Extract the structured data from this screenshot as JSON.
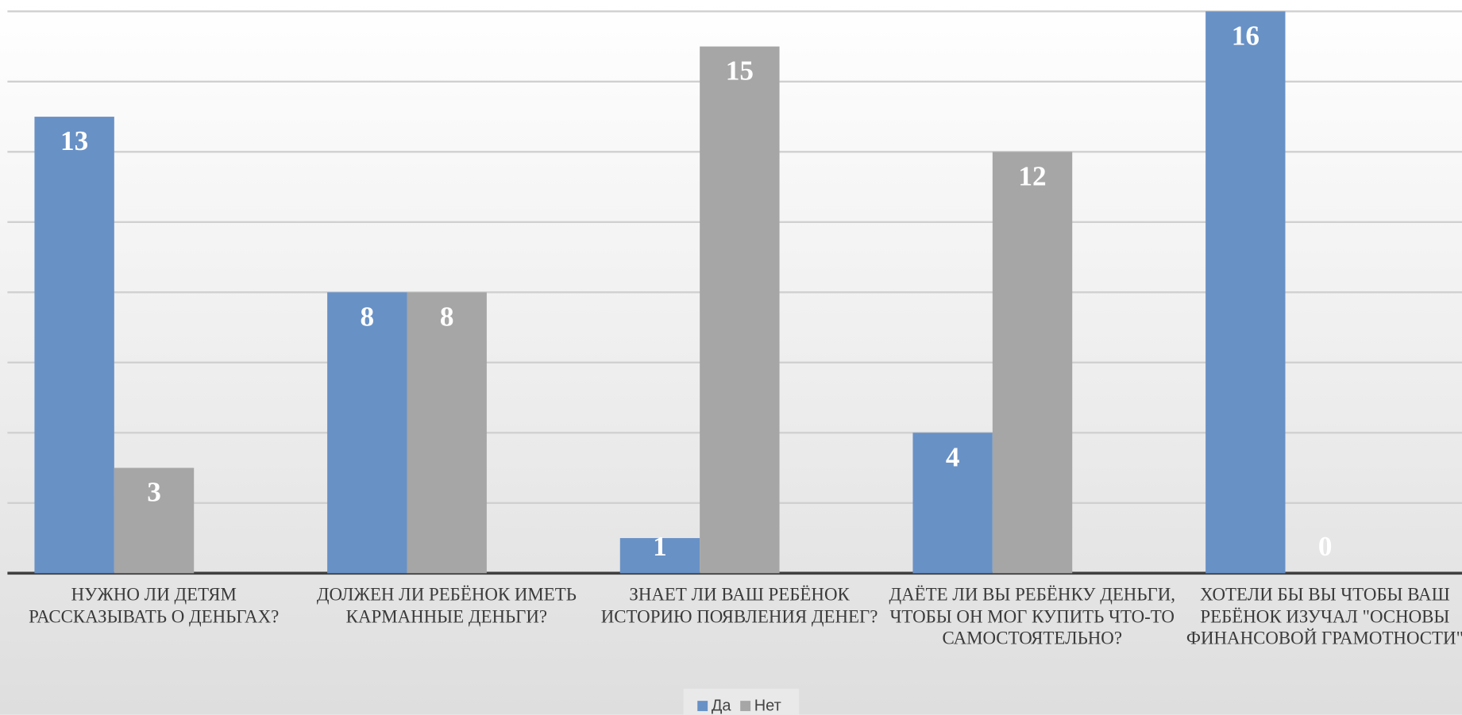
{
  "chart_data": {
    "type": "bar",
    "categories": [
      "НУЖНО ЛИ ДЕТЯМ РАССКАЗЫВАТЬ О ДЕНЬГАХ?",
      "ДОЛЖЕН ЛИ РЕБЁНОК ИМЕТЬ КАРМАННЫЕ ДЕНЬГИ?",
      "ЗНАЕТ ЛИ ВАШ РЕБЁНОК ИСТОРИЮ ПОЯВЛЕНИЯ ДЕНЕГ?",
      "ДАЁТЕ ЛИ ВЫ РЕБЁНКУ ДЕНЬГИ, ЧТОБЫ ОН МОГ КУПИТЬ ЧТО-ТО САМОСТОЯТЕЛЬНО?",
      "ХОТЕЛИ БЫ ВЫ ЧТОБЫ ВАШ РЕБЁНОК ИЗУЧАЛ \"ОСНОВЫ ФИНАНСОВОЙ ГРАМОТНОСТИ\""
    ],
    "series": [
      {
        "name": "Да",
        "color": "#6891c6",
        "values": [
          13,
          8,
          1,
          4,
          16
        ]
      },
      {
        "name": "Нет",
        "color": "#a6a6a6",
        "values": [
          3,
          8,
          15,
          12,
          0
        ]
      }
    ],
    "ylim": [
      0,
      16
    ],
    "yticks": [
      0,
      2,
      4,
      6,
      8,
      10,
      12,
      14,
      16
    ],
    "grid": true,
    "legend": "bottom"
  }
}
